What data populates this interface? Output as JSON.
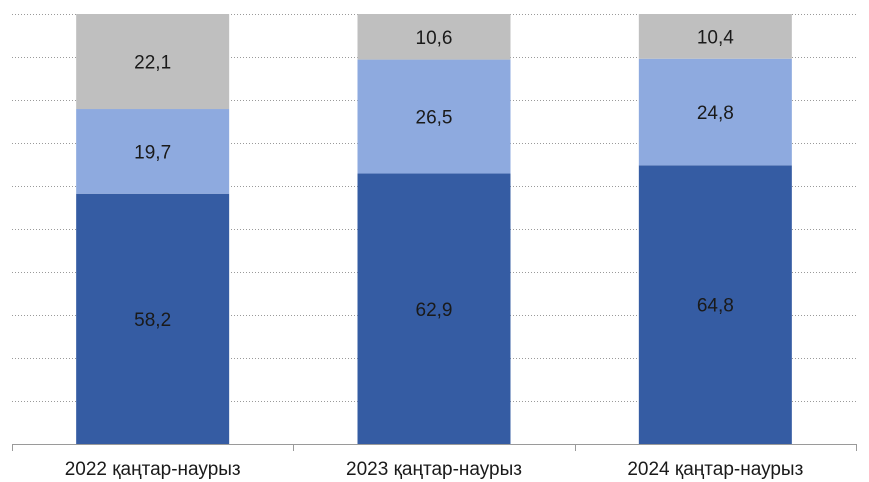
{
  "chart_data": {
    "type": "bar",
    "stacked": true,
    "categories": [
      "2022 қаңтар-наурыз",
      "2023 қаңтар-наурыз",
      "2024 қаңтар-наурыз"
    ],
    "series": [
      {
        "values": [
          58.2,
          62.9,
          64.8
        ],
        "color": "#355ca3",
        "label_values": [
          "58,2",
          "62,9",
          "64,8"
        ]
      },
      {
        "values": [
          19.7,
          26.5,
          24.8
        ],
        "color": "#8eaadf",
        "label_values": [
          "19,7",
          "26,5",
          "24,8"
        ]
      },
      {
        "values": [
          22.1,
          10.6,
          10.4
        ],
        "color": "#bfbfbf",
        "label_values": [
          "22,1",
          "10,6",
          "10,4"
        ]
      }
    ],
    "ylim": [
      0,
      100
    ],
    "grid": true,
    "title": "",
    "xlabel": "",
    "ylabel": ""
  }
}
